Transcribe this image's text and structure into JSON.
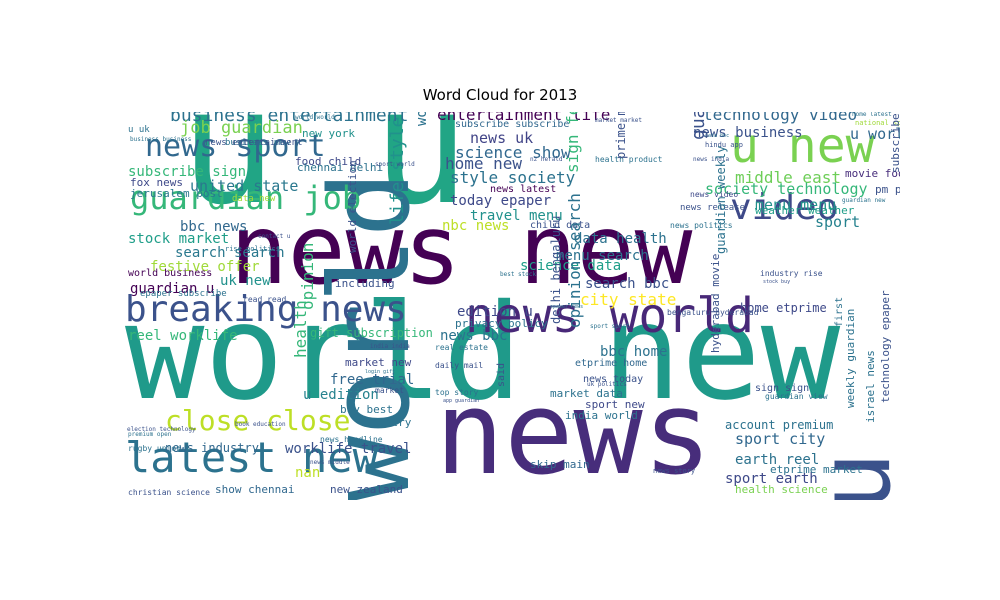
{
  "chart_data": {
    "type": "wordcloud",
    "title": "Word Cloud for 2013",
    "words": [
      {
        "text": "u u",
        "weight": 1.0,
        "color": "#21a585",
        "rotated": false
      },
      {
        "text": "world new",
        "weight": 0.98,
        "color": "#1f9a8a",
        "rotated": false
      },
      {
        "text": "news new",
        "weight": 0.95,
        "color": "#440154",
        "rotated": false
      },
      {
        "text": "news",
        "weight": 0.9,
        "color": "#472d7b",
        "rotated": false
      },
      {
        "text": "u",
        "weight": 0.84,
        "color": "#3b528b",
        "rotated": true
      },
      {
        "text": "world",
        "weight": 0.8,
        "color": "#2c728e",
        "rotated": true
      },
      {
        "text": "news world",
        "weight": 0.6,
        "color": "#482878",
        "rotated": false
      },
      {
        "text": "breaking news",
        "weight": 0.55,
        "color": "#3b528b",
        "rotated": false
      },
      {
        "text": "latest new",
        "weight": 0.55,
        "color": "#2c728e",
        "rotated": false
      },
      {
        "text": "guardian job",
        "weight": 0.5,
        "color": "#35b779",
        "rotated": false
      },
      {
        "text": "u new",
        "weight": 0.5,
        "color": "#7ad151",
        "rotated": false
      },
      {
        "text": "news sport",
        "weight": 0.45,
        "color": "#31688e",
        "rotated": false
      },
      {
        "text": "close close",
        "weight": 0.42,
        "color": "#bddf26",
        "rotated": false
      },
      {
        "text": "video",
        "weight": 0.38,
        "color": "#3e4989",
        "rotated": false
      },
      {
        "text": "life style",
        "weight": 0.3,
        "color": "#21918c",
        "rotated": true
      },
      {
        "text": "business entertainment",
        "weight": 0.3,
        "color": "#2c728e",
        "rotated": false
      },
      {
        "text": "entertainment life",
        "weight": 0.3,
        "color": "#440154",
        "rotated": false
      },
      {
        "text": "technology video",
        "weight": 0.3,
        "color": "#31688e",
        "rotated": false
      },
      {
        "text": "job guardian",
        "weight": 0.3,
        "color": "#7ad151",
        "rotated": false
      },
      {
        "text": "science show",
        "weight": 0.3,
        "color": "#31688e",
        "rotated": false
      },
      {
        "text": "home new",
        "weight": 0.28,
        "color": "#3b528b",
        "rotated": false
      },
      {
        "text": "style society",
        "weight": 0.28,
        "color": "#2c728e",
        "rotated": false
      },
      {
        "text": "u world",
        "weight": 0.28,
        "color": "#31688e",
        "rotated": false
      },
      {
        "text": "news uk",
        "weight": 0.26,
        "color": "#414487",
        "rotated": false
      },
      {
        "text": "news business",
        "weight": 0.26,
        "color": "#3b528b",
        "rotated": false
      },
      {
        "text": "middle east",
        "weight": 0.26,
        "color": "#6ece58",
        "rotated": false
      },
      {
        "text": "society technology",
        "weight": 0.26,
        "color": "#35b779",
        "rotated": false
      },
      {
        "text": "menu menu",
        "weight": 0.26,
        "color": "#21918c",
        "rotated": false
      },
      {
        "text": "sport",
        "weight": 0.26,
        "color": "#26828e",
        "rotated": false
      },
      {
        "text": "united state",
        "weight": 0.26,
        "color": "#2a788e",
        "rotated": false
      },
      {
        "text": "subscribe sign",
        "weight": 0.24,
        "color": "#35b779",
        "rotated": false
      },
      {
        "text": "today epaper",
        "weight": 0.24,
        "color": "#3e4989",
        "rotated": false
      },
      {
        "text": "travel menu",
        "weight": 0.24,
        "color": "#21918c",
        "rotated": false
      },
      {
        "text": "nbc news",
        "weight": 0.24,
        "color": "#bddf26",
        "rotated": false
      },
      {
        "text": "bbc news",
        "weight": 0.24,
        "color": "#31688e",
        "rotated": false
      },
      {
        "text": "search search",
        "weight": 0.24,
        "color": "#2a788e",
        "rotated": false
      },
      {
        "text": "stock market",
        "weight": 0.24,
        "color": "#1f9e89",
        "rotated": false
      },
      {
        "text": "data health",
        "weight": 0.24,
        "color": "#2c728e",
        "rotated": false
      },
      {
        "text": "menu search",
        "weight": 0.24,
        "color": "#2c728e",
        "rotated": false
      },
      {
        "text": "science data",
        "weight": 0.24,
        "color": "#1f9e89",
        "rotated": false
      },
      {
        "text": "festive offer",
        "weight": 0.24,
        "color": "#a0da39",
        "rotated": false
      },
      {
        "text": "uk new",
        "weight": 0.24,
        "color": "#21918c",
        "rotated": false
      },
      {
        "text": "search bbc",
        "weight": 0.24,
        "color": "#3b528b",
        "rotated": false
      },
      {
        "text": "city state",
        "weight": 0.24,
        "color": "#fde725",
        "rotated": false
      },
      {
        "text": "guardian u",
        "weight": 0.24,
        "color": "#440154",
        "rotated": false
      },
      {
        "text": "edition u",
        "weight": 0.22,
        "color": "#3e4989",
        "rotated": false
      },
      {
        "text": "reel worklife",
        "weight": 0.22,
        "color": "#35b779",
        "rotated": false
      },
      {
        "text": "news bbc",
        "weight": 0.22,
        "color": "#2c728e",
        "rotated": false
      },
      {
        "text": "bbc home",
        "weight": 0.22,
        "color": "#2c728e",
        "rotated": false
      },
      {
        "text": "free trial",
        "weight": 0.22,
        "color": "#31688e",
        "rotated": false
      },
      {
        "text": "u edition",
        "weight": 0.22,
        "color": "#26828e",
        "rotated": false
      },
      {
        "text": "earth reel",
        "weight": 0.22,
        "color": "#2c728e",
        "rotated": false
      },
      {
        "text": "sport city",
        "weight": 0.22,
        "color": "#31688e",
        "rotated": false
      },
      {
        "text": "sport earth",
        "weight": 0.22,
        "color": "#3e4989",
        "rotated": false
      },
      {
        "text": "worklife travel",
        "weight": 0.22,
        "color": "#3b528b",
        "rotated": false
      },
      {
        "text": "news industry",
        "weight": 0.2,
        "color": "#31688e",
        "rotated": false
      },
      {
        "text": "new york",
        "weight": 0.18,
        "color": "#21918c",
        "rotated": false
      },
      {
        "text": "food child",
        "weight": 0.18,
        "color": "#3e4989",
        "rotated": false
      },
      {
        "text": "fox news",
        "weight": 0.18,
        "color": "#3e4989",
        "rotated": false
      },
      {
        "text": "jerusalem post",
        "weight": 0.18,
        "color": "#2a788e",
        "rotated": false
      },
      {
        "text": "chennai delhi",
        "weight": 0.18,
        "color": "#2c728e",
        "rotated": false
      },
      {
        "text": "gift subscription",
        "weight": 0.2,
        "color": "#35b779",
        "rotated": false
      },
      {
        "text": "privacy policy",
        "weight": 0.18,
        "color": "#2c728e",
        "rotated": false
      },
      {
        "text": "health science",
        "weight": 0.18,
        "color": "#7ad151",
        "rotated": false
      },
      {
        "text": "show chennai",
        "weight": 0.18,
        "color": "#31688e",
        "rotated": false
      },
      {
        "text": "new zealand",
        "weight": 0.18,
        "color": "#3b528b",
        "rotated": false
      },
      {
        "text": "account premium",
        "weight": 0.18,
        "color": "#2c728e",
        "rotated": false
      },
      {
        "text": "home etprime",
        "weight": 0.18,
        "color": "#3e4989",
        "rotated": false
      },
      {
        "text": "etprime market",
        "weight": 0.16,
        "color": "#2c728e",
        "rotated": false
      },
      {
        "text": "movie food",
        "weight": 0.16,
        "color": "#472d7b",
        "rotated": false
      },
      {
        "text": "pm pm",
        "weight": 0.16,
        "color": "#3b528b",
        "rotated": false
      },
      {
        "text": "weather weather",
        "weight": 0.16,
        "color": "#1f9e89",
        "rotated": false
      },
      {
        "text": "skip main",
        "weight": 0.16,
        "color": "#31688e",
        "rotated": false
      },
      {
        "text": "market new",
        "weight": 0.16,
        "color": "#3e4989",
        "rotated": false
      },
      {
        "text": "country",
        "weight": 0.16,
        "color": "#2c728e",
        "rotated": false
      },
      {
        "text": "buy best",
        "weight": 0.16,
        "color": "#2c728e",
        "rotated": false
      },
      {
        "text": "including",
        "weight": 0.16,
        "color": "#3b528b",
        "rotated": false
      },
      {
        "text": "market data",
        "weight": 0.16,
        "color": "#2c728e",
        "rotated": false
      },
      {
        "text": "sport new",
        "weight": 0.16,
        "color": "#3e4989",
        "rotated": false
      },
      {
        "text": "india world",
        "weight": 0.16,
        "color": "#2c728e",
        "rotated": false
      },
      {
        "text": "news today",
        "weight": 0.15,
        "color": "#3b528b",
        "rotated": false
      },
      {
        "text": "etprime home",
        "weight": 0.15,
        "color": "#31688e",
        "rotated": false
      },
      {
        "text": "nan",
        "weight": 0.18,
        "color": "#bddf26",
        "rotated": false
      },
      {
        "text": "subscribe subscribe",
        "weight": 0.14,
        "color": "#31688e",
        "rotated": false
      },
      {
        "text": "news latest",
        "weight": 0.16,
        "color": "#440154",
        "rotated": false
      },
      {
        "text": "child data",
        "weight": 0.15,
        "color": "#3b528b",
        "rotated": false
      },
      {
        "text": "business new",
        "weight": 0.14,
        "color": "#2c728e",
        "rotated": false
      },
      {
        "text": "news entertainment",
        "weight": 0.14,
        "color": "#3b528b",
        "rotated": false
      },
      {
        "text": "u uk",
        "weight": 0.14,
        "color": "#2c728e",
        "rotated": false
      },
      {
        "text": "news video",
        "weight": 0.14,
        "color": "#3e4989",
        "rotated": false
      },
      {
        "text": "news release",
        "weight": 0.14,
        "color": "#3b528b",
        "rotated": false
      },
      {
        "text": "news politics",
        "weight": 0.13,
        "color": "#2c728e",
        "rotated": false
      },
      {
        "text": "real estate",
        "weight": 0.13,
        "color": "#2c728e",
        "rotated": false
      },
      {
        "text": "daily mail",
        "weight": 0.13,
        "color": "#3b528b",
        "rotated": false
      },
      {
        "text": "top story",
        "weight": 0.13,
        "color": "#2c728e",
        "rotated": false
      },
      {
        "text": "market",
        "weight": 0.13,
        "color": "#3b528b",
        "rotated": false
      },
      {
        "text": "world business",
        "weight": 0.15,
        "color": "#440154",
        "rotated": false
      },
      {
        "text": "epaper subscribe",
        "weight": 0.14,
        "color": "#2c728e",
        "rotated": false
      },
      {
        "text": "read read",
        "weight": 0.13,
        "color": "#3b528b",
        "rotated": false
      },
      {
        "text": "rugby union",
        "weight": 0.13,
        "color": "#2c728e",
        "rotated": false
      },
      {
        "text": "christian science",
        "weight": 0.13,
        "color": "#3b528b",
        "rotated": false
      },
      {
        "text": "news headline",
        "weight": 0.13,
        "color": "#2c728e",
        "rotated": false
      },
      {
        "text": "industry rise",
        "weight": 0.13,
        "color": "#3b528b",
        "rotated": false
      },
      {
        "text": "sign sign",
        "weight": 0.15,
        "color": "#3b528b",
        "rotated": false
      },
      {
        "text": "guardian view",
        "weight": 0.13,
        "color": "#2c728e",
        "rotated": false
      },
      {
        "text": "news story",
        "weight": 0.13,
        "color": "#3b528b",
        "rotated": false
      },
      {
        "text": "news middle",
        "weight": 0.12,
        "color": "#3b528b",
        "rotated": false
      },
      {
        "text": "home latest",
        "weight": 0.12,
        "color": "#2c728e",
        "rotated": false
      },
      {
        "text": "national sport",
        "weight": 0.12,
        "color": "#a0da39",
        "rotated": false
      },
      {
        "text": "guardian new",
        "weight": 0.12,
        "color": "#2c728e",
        "rotated": false
      },
      {
        "text": "hindu app",
        "weight": 0.12,
        "color": "#3b528b",
        "rotated": false
      },
      {
        "text": "market market",
        "weight": 0.12,
        "color": "#3b528b",
        "rotated": false
      },
      {
        "text": "world world",
        "weight": 0.12,
        "color": "#2c728e",
        "rotated": false
      },
      {
        "text": "sport world",
        "weight": 0.12,
        "color": "#3b528b",
        "rotated": false
      },
      {
        "text": "business business",
        "weight": 0.12,
        "color": "#2c728e",
        "rotated": false
      },
      {
        "text": "data new",
        "weight": 0.12,
        "color": "#a0da39",
        "rotated": false
      },
      {
        "text": "election technology",
        "weight": 0.12,
        "color": "#3b528b",
        "rotated": false
      },
      {
        "text": "rise politics",
        "weight": 0.12,
        "color": "#2c728e",
        "rotated": false
      },
      {
        "text": "contact u",
        "weight": 0.12,
        "color": "#3b528b",
        "rotated": false
      },
      {
        "text": "best stock",
        "weight": 0.12,
        "color": "#2c728e",
        "rotated": false
      },
      {
        "text": "india india",
        "weight": 0.12,
        "color": "#3b528b",
        "rotated": false
      },
      {
        "text": "book education",
        "weight": 0.11,
        "color": "#3b528b",
        "rotated": false
      },
      {
        "text": "premium open",
        "weight": 0.11,
        "color": "#2c728e",
        "rotated": false
      },
      {
        "text": "nz herald",
        "weight": 0.11,
        "color": "#3b528b",
        "rotated": false
      },
      {
        "text": "health product",
        "weight": 0.12,
        "color": "#2c728e",
        "rotated": false
      },
      {
        "text": "bengaluru hyderabad",
        "weight": 0.13,
        "color": "#3b528b",
        "rotated": false
      },
      {
        "text": "epaper news",
        "weight": 0.11,
        "color": "#2c728e",
        "rotated": false
      },
      {
        "text": "stock buy",
        "weight": 0.11,
        "color": "#3b528b",
        "rotated": false
      },
      {
        "text": "news india",
        "weight": 0.11,
        "color": "#3b528b",
        "rotated": false
      },
      {
        "text": "data bbc",
        "weight": 0.11,
        "color": "#2c728e",
        "rotated": false
      },
      {
        "text": "app guardian",
        "weight": 0.11,
        "color": "#3b528b",
        "rotated": false
      },
      {
        "text": "sport sport",
        "weight": 0.11,
        "color": "#2c728e",
        "rotated": false
      },
      {
        "text": "uk politics",
        "weight": 0.11,
        "color": "#3b528b",
        "rotated": false
      },
      {
        "text": "login gift",
        "weight": 0.11,
        "color": "#2c728e",
        "rotated": false
      },
      {
        "text": "world u",
        "weight": 0.2,
        "color": "#2c728e",
        "rotated": true
      },
      {
        "text": "sign festive",
        "weight": 0.2,
        "color": "#35b779",
        "rotated": true
      },
      {
        "text": "guardian",
        "weight": 0.24,
        "color": "#3b528b",
        "rotated": true
      },
      {
        "text": "health",
        "weight": 0.2,
        "color": "#35b779",
        "rotated": true
      },
      {
        "text": "opinion",
        "weight": 0.2,
        "color": "#35b779",
        "rotated": true
      },
      {
        "text": "opinion search",
        "weight": 0.2,
        "color": "#2c728e",
        "rotated": true
      },
      {
        "text": "delhi bengaluru",
        "weight": 0.16,
        "color": "#3b528b",
        "rotated": true
      },
      {
        "text": "prime minister",
        "weight": 0.14,
        "color": "#3b528b",
        "rotated": true
      },
      {
        "text": "guardian weekly",
        "weight": 0.14,
        "color": "#2c728e",
        "rotated": true
      },
      {
        "text": "hyderabad movie",
        "weight": 0.14,
        "color": "#3b528b",
        "rotated": true
      },
      {
        "text": "weekly guardian",
        "weight": 0.14,
        "color": "#2c728e",
        "rotated": true
      },
      {
        "text": "technology epaper",
        "weight": 0.13,
        "color": "#3b528b",
        "rotated": true
      },
      {
        "text": "israel news",
        "weight": 0.14,
        "color": "#2c728e",
        "rotated": true
      },
      {
        "text": "subscribe archive",
        "weight": 0.13,
        "color": "#3b528b",
        "rotated": true
      },
      {
        "text": "world election",
        "weight": 0.13,
        "color": "#3b528b",
        "rotated": true
      },
      {
        "text": "first",
        "weight": 0.12,
        "color": "#2c728e",
        "rotated": true
      },
      {
        "text": "said",
        "weight": 0.12,
        "color": "#3b528b",
        "rotated": true
      }
    ]
  }
}
